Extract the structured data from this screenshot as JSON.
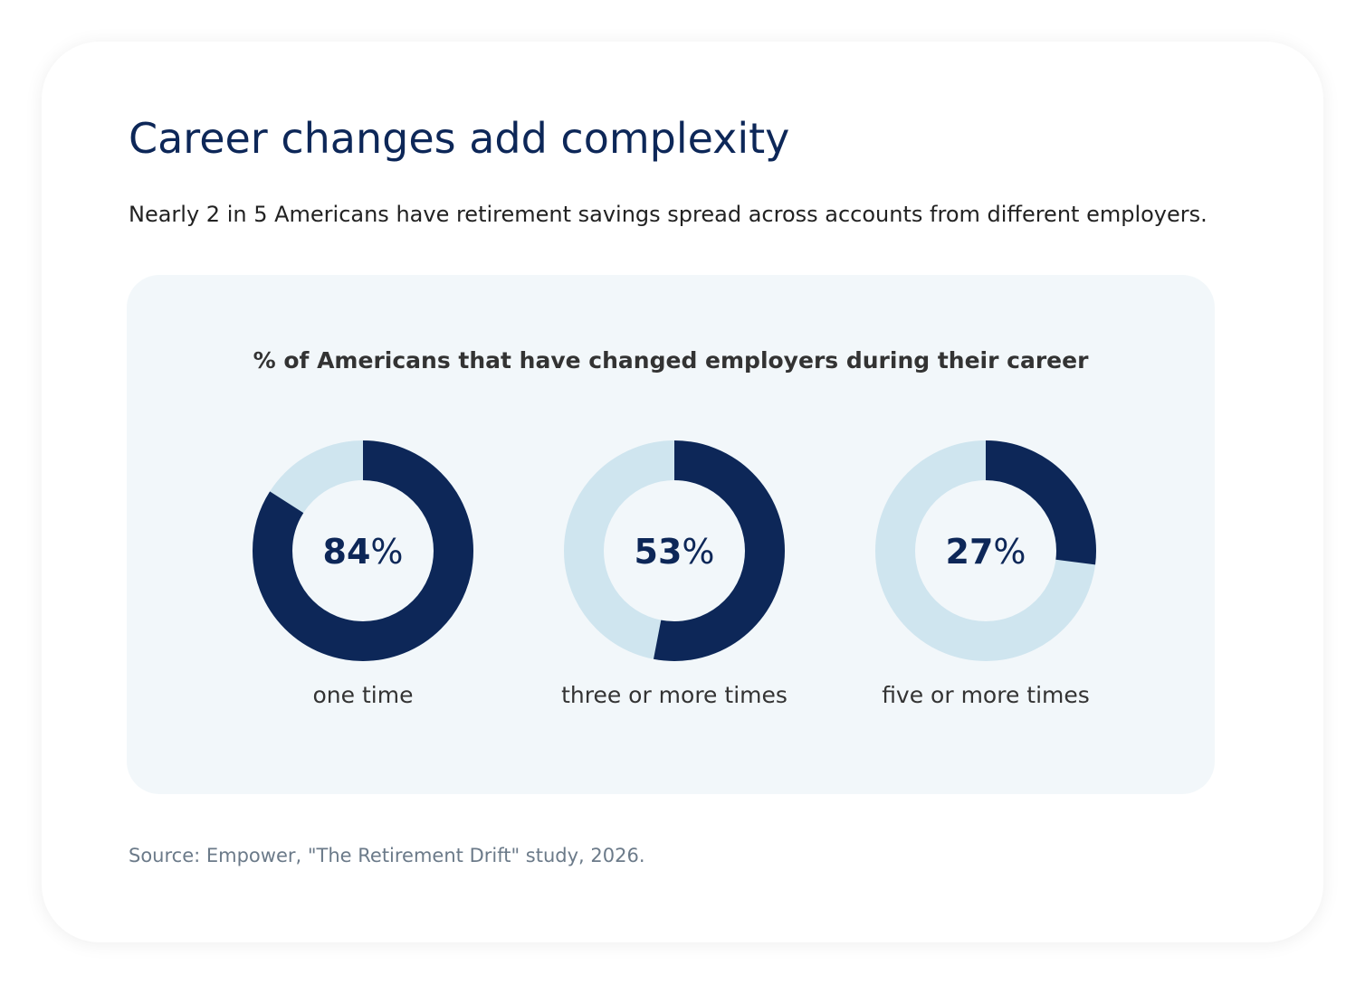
{
  "card": {
    "title": "Career changes add complexity",
    "subtitle": "Nearly 2 in 5 Americans have retirement savings spread across accounts from different employers.",
    "source": "Source: Empower, \"The Retirement Drift\" study, 2026."
  },
  "colors": {
    "filled": "#0d2758",
    "remainder": "#cfe5ef",
    "panel": "#f2f7fa"
  },
  "chart_data": {
    "type": "pie",
    "title": "% of Americans that have changed employers during their career",
    "unit": "%",
    "categories": [
      "one time",
      "three or more times",
      "five or more times"
    ],
    "values": [
      84,
      53,
      27
    ],
    "max": 100
  }
}
